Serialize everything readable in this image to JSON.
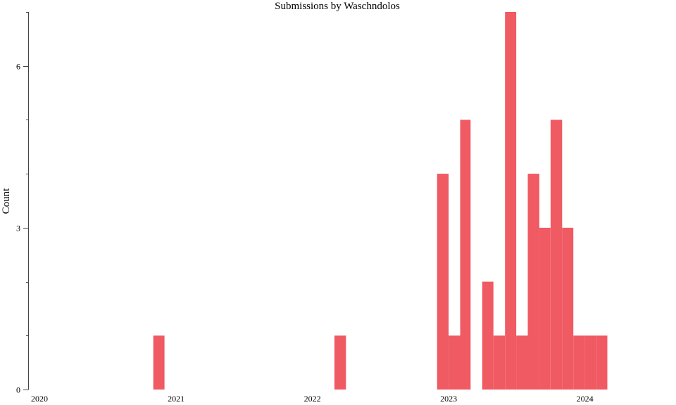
{
  "chart_data": {
    "type": "bar",
    "title": "Submissions by Waschndolos",
    "xlabel": "",
    "ylabel": "Count",
    "bar_color": "#f05a63",
    "grid": false,
    "legend": "none",
    "xlim": [
      "2020-01-01",
      "2024-09-01"
    ],
    "ylim": [
      0,
      7
    ],
    "x_ticks": [
      {
        "value": "2020-01-01",
        "label": "2020"
      },
      {
        "value": "2021-01-01",
        "label": "2021"
      },
      {
        "value": "2022-01-01",
        "label": "2022"
      },
      {
        "value": "2023-01-01",
        "label": "2023"
      },
      {
        "value": "2024-01-01",
        "label": "2024"
      }
    ],
    "y_ticks": [
      {
        "value": 0,
        "label": "0"
      },
      {
        "value": 3,
        "label": "3"
      },
      {
        "value": 6,
        "label": "6"
      }
    ],
    "y_minor_ticks": [
      1,
      2,
      4,
      5,
      7
    ],
    "bins": [
      {
        "start": "2020-11-01",
        "end": "2020-12-01",
        "count": 1
      },
      {
        "start": "2022-03-01",
        "end": "2022-04-01",
        "count": 1
      },
      {
        "start": "2022-12-01",
        "end": "2023-01-01",
        "count": 4
      },
      {
        "start": "2023-01-01",
        "end": "2023-02-01",
        "count": 1
      },
      {
        "start": "2023-02-01",
        "end": "2023-03-01",
        "count": 5
      },
      {
        "start": "2023-04-01",
        "end": "2023-05-01",
        "count": 2
      },
      {
        "start": "2023-05-01",
        "end": "2023-06-01",
        "count": 1
      },
      {
        "start": "2023-06-01",
        "end": "2023-07-01",
        "count": 7
      },
      {
        "start": "2023-07-01",
        "end": "2023-08-01",
        "count": 1
      },
      {
        "start": "2023-08-01",
        "end": "2023-09-01",
        "count": 4
      },
      {
        "start": "2023-09-01",
        "end": "2023-10-01",
        "count": 3
      },
      {
        "start": "2023-10-01",
        "end": "2023-11-01",
        "count": 5
      },
      {
        "start": "2023-11-01",
        "end": "2023-12-01",
        "count": 3
      },
      {
        "start": "2023-12-01",
        "end": "2024-01-01",
        "count": 1
      },
      {
        "start": "2024-01-01",
        "end": "2024-02-01",
        "count": 1
      },
      {
        "start": "2024-02-01",
        "end": "2024-03-01",
        "count": 1
      }
    ]
  }
}
